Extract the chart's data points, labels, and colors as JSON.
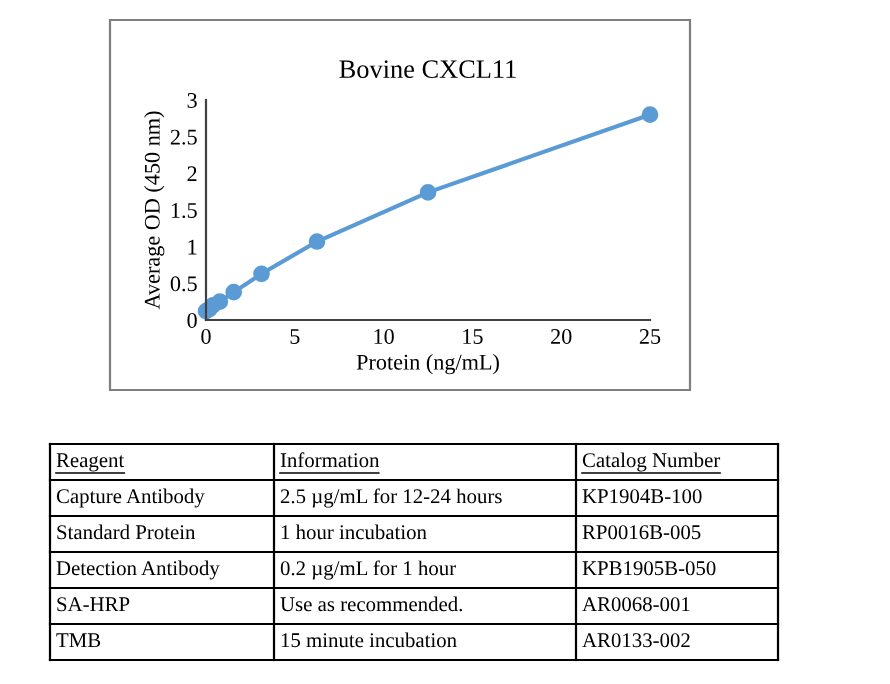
{
  "chart_data": {
    "type": "line",
    "title": "Bovine CXCL11",
    "xlabel": "Protein (ng/mL)",
    "ylabel": "Average OD (450 nm)",
    "x": [
      0,
      0.195,
      0.39,
      0.78,
      1.56,
      3.125,
      6.25,
      12.5,
      25
    ],
    "series": [
      {
        "color": "#5b9bd5",
        "values": [
          0.12,
          0.15,
          0.2,
          0.25,
          0.38,
          0.63,
          1.07,
          1.74,
          2.8
        ]
      }
    ],
    "xlim": [
      0,
      25
    ],
    "xticks": [
      0,
      5,
      10,
      15,
      20,
      25
    ],
    "ylim": [
      0,
      3
    ],
    "yticks": [
      0,
      0.5,
      1,
      1.5,
      2,
      2.5,
      3
    ],
    "marker": "circle",
    "line_style": "solid",
    "grid": false,
    "legend": false,
    "annotations": [
      "Reagent",
      "Information",
      "Catalog Number",
      "Capture Antibody",
      "2.5 µg/mL for 12-24 hours",
      "KP1904B-100",
      "Standard Protein",
      "1 hour incubation",
      "RP0016B-005",
      "Detection Antibody",
      "0.2 µg/mL for 1 hour",
      "KPB1905B-050",
      "SA-HRP",
      "Use as recommended.",
      "AR0068-001",
      "TMB",
      "15 minute incubation",
      "AR0133-002"
    ]
  }
}
